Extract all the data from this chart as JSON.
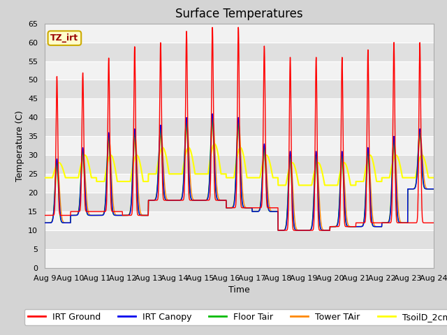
{
  "title": "Surface Temperatures",
  "xlabel": "Time",
  "ylabel": "Temperature (C)",
  "ylim": [
    0,
    65
  ],
  "yticks": [
    0,
    5,
    10,
    15,
    20,
    25,
    30,
    35,
    40,
    45,
    50,
    55,
    60,
    65
  ],
  "x_tick_labels": [
    "Aug 9",
    "Aug 10",
    "Aug 11",
    "Aug 12",
    "Aug 13",
    "Aug 14",
    "Aug 15",
    "Aug 16",
    "Aug 17",
    "Aug 18",
    "Aug 19",
    "Aug 20",
    "Aug 21",
    "Aug 22",
    "Aug 23",
    "Aug 24"
  ],
  "series": {
    "IRT Ground": {
      "color": "#ff0000",
      "lw": 1.0
    },
    "IRT Canopy": {
      "color": "#0000ee",
      "lw": 1.0
    },
    "Floor Tair": {
      "color": "#00bb00",
      "lw": 1.0
    },
    "Tower TAir": {
      "color": "#ff8800",
      "lw": 1.0
    },
    "TsoilD_2cm": {
      "color": "#ffff00",
      "lw": 1.5
    }
  },
  "annotation_text": "TZ_irt",
  "annotation_color": "#990000",
  "annotation_bg": "#ffffcc",
  "annotation_border": "#ccaa00",
  "fig_bg_color": "#d4d4d4",
  "plot_bg_light": "#f2f2f2",
  "plot_bg_dark": "#e0e0e0",
  "grid_color": "#ffffff",
  "title_fontsize": 12,
  "axis_fontsize": 9,
  "tick_fontsize": 8,
  "legend_fontsize": 9
}
